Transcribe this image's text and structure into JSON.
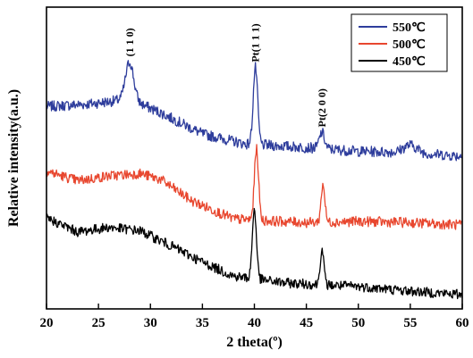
{
  "chart_data": {
    "type": "line",
    "title": "",
    "xlabel": "2 theta(º)",
    "ylabel": "Relative intensity(a.u.)",
    "xlim": [
      20,
      60
    ],
    "x_ticks": [
      "20",
      "25",
      "30",
      "35",
      "40",
      "45",
      "50",
      "55",
      "60"
    ],
    "y_ticks_labeled": false,
    "grid": false,
    "legend_position": "top-right",
    "series": [
      {
        "name": "550℃",
        "color": "#2e3d9c",
        "peaks": [
          {
            "x": 28.0,
            "height": 0.3,
            "width": 0.55
          },
          {
            "x": 40.1,
            "height": 0.62,
            "width": 0.3
          },
          {
            "x": 46.5,
            "height": 0.13,
            "width": 0.35
          },
          {
            "x": 55.0,
            "height": 0.06,
            "width": 0.9
          }
        ],
        "baseline": [
          [
            20,
            0.4
          ],
          [
            24,
            0.42
          ],
          [
            28,
            0.46
          ],
          [
            31,
            0.35
          ],
          [
            35,
            0.18
          ],
          [
            39,
            0.1
          ],
          [
            45,
            0.07
          ],
          [
            50,
            0.04
          ],
          [
            55,
            0.03
          ],
          [
            60,
            0.0
          ]
        ]
      },
      {
        "name": "500℃",
        "color": "#e8472f",
        "peaks": [
          {
            "x": 40.2,
            "height": 0.6,
            "width": 0.28
          },
          {
            "x": 46.6,
            "height": 0.32,
            "width": 0.25
          }
        ],
        "baseline": [
          [
            20,
            0.45
          ],
          [
            23,
            0.37
          ],
          [
            26,
            0.41
          ],
          [
            29,
            0.43
          ],
          [
            31,
            0.38
          ],
          [
            34,
            0.2
          ],
          [
            38,
            0.05
          ],
          [
            45,
            0.02
          ],
          [
            50,
            0.03
          ],
          [
            55,
            0.02
          ],
          [
            60,
            0.0
          ]
        ]
      },
      {
        "name": "450℃",
        "color": "#000000",
        "peaks": [
          {
            "x": 40.0,
            "height": 0.6,
            "width": 0.28
          },
          {
            "x": 46.5,
            "height": 0.3,
            "width": 0.25
          }
        ],
        "baseline": [
          [
            20,
            0.66
          ],
          [
            23,
            0.54
          ],
          [
            26,
            0.58
          ],
          [
            29,
            0.55
          ],
          [
            32,
            0.42
          ],
          [
            35,
            0.28
          ],
          [
            38,
            0.16
          ],
          [
            43,
            0.1
          ],
          [
            50,
            0.07
          ],
          [
            55,
            0.03
          ],
          [
            60,
            0.0
          ]
        ]
      }
    ],
    "annotations": [
      {
        "text": "(1 1 0)",
        "x": 28.0,
        "series": "550℃"
      },
      {
        "text": "Pt(1 1 1)",
        "x": 40.1,
        "series": "550℃"
      },
      {
        "text": "Pt(2 0 0)",
        "x": 46.5,
        "series": "550℃"
      }
    ]
  }
}
